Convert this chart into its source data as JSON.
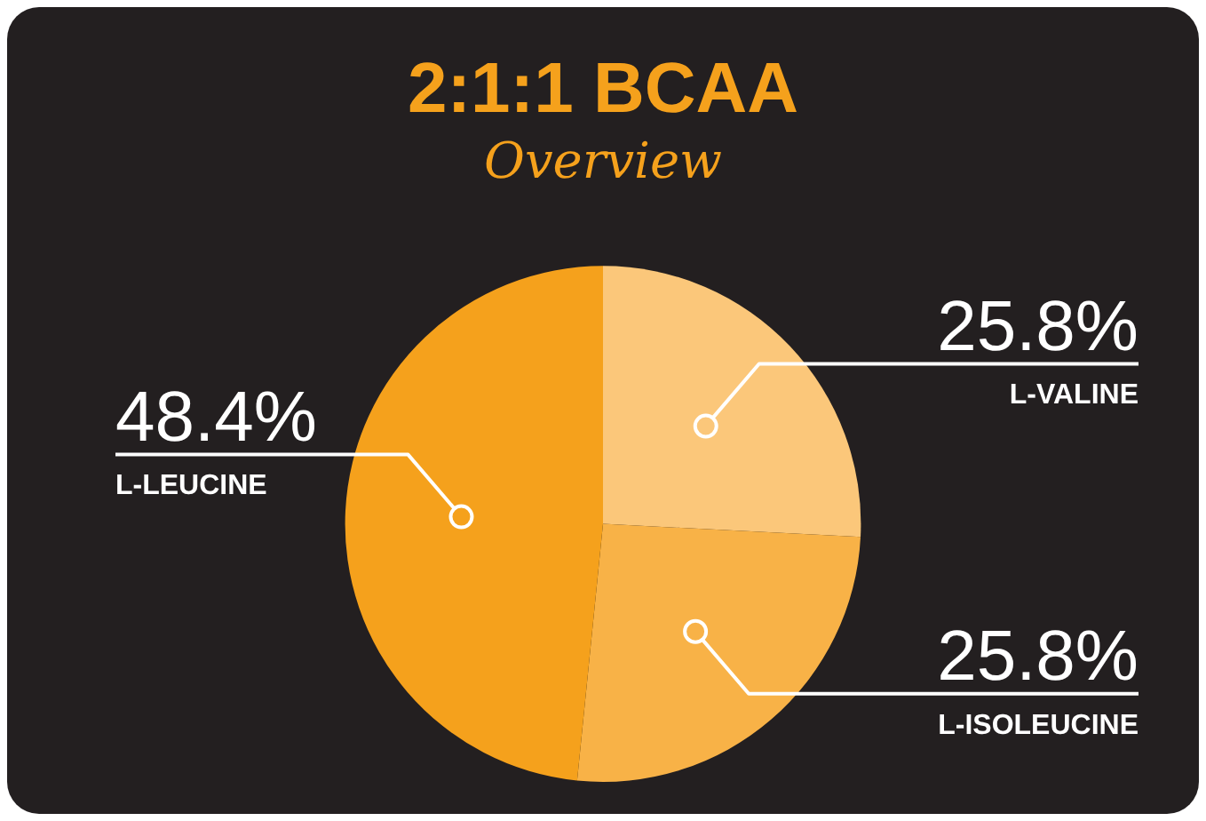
{
  "chart_data": {
    "type": "pie",
    "title": "2:1:1 BCAA",
    "subtitle": "Overview",
    "categories": [
      "L-VALINE",
      "L-ISOLEUCINE",
      "L-LEUCINE"
    ],
    "values": [
      25.8,
      25.8,
      48.4
    ],
    "colors": [
      "#fbc77a",
      "#f8b247",
      "#f5a11c"
    ],
    "value_labels": [
      "25.8%",
      "25.8%",
      "48.4%"
    ],
    "legend": false
  }
}
